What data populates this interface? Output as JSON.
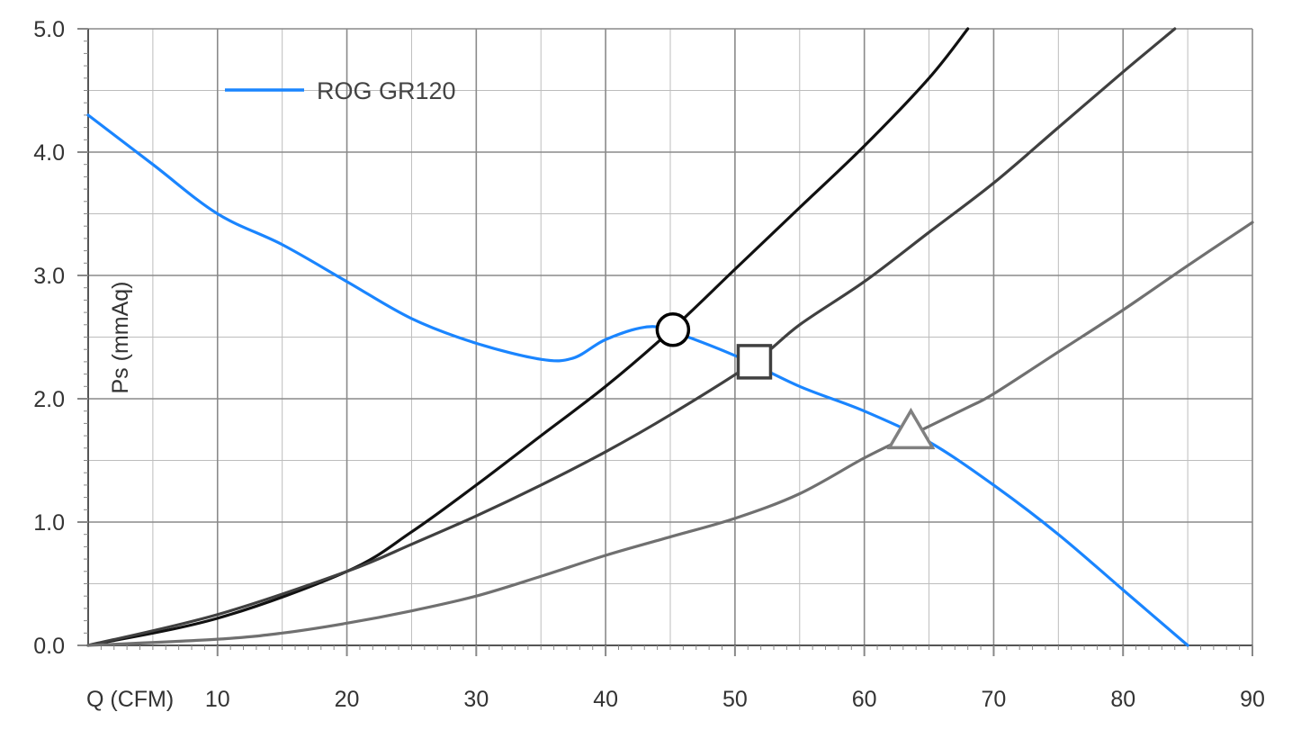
{
  "chart_data": {
    "type": "line",
    "xlabel": "Q (CFM)",
    "ylabel": "Ps (mmAq)",
    "xlim": [
      0,
      90
    ],
    "ylim": [
      0,
      5
    ],
    "x_ticks": [
      10,
      20,
      30,
      40,
      50,
      60,
      70,
      80,
      90
    ],
    "x_tick_labels": [
      "10",
      "20",
      "30",
      "40",
      "50",
      "60",
      "70",
      "80",
      "90"
    ],
    "y_ticks": [
      0,
      1,
      2,
      3,
      4,
      5
    ],
    "y_tick_labels": [
      "0.0",
      "1.0",
      "2.0",
      "3.0",
      "4.0",
      "5.0"
    ],
    "grid": true,
    "legend_position": "top-left",
    "legend": [
      "ROG GR120"
    ],
    "series": [
      {
        "name": "ROG GR120",
        "color": "#1a85ff",
        "x": [
          0,
          5,
          10,
          15,
          20,
          25,
          30,
          35,
          37.5,
          40,
          43,
          45,
          50,
          55,
          60,
          65,
          70,
          75,
          80,
          85
        ],
        "y": [
          4.3,
          3.9,
          3.5,
          3.25,
          2.95,
          2.65,
          2.45,
          2.32,
          2.33,
          2.48,
          2.58,
          2.55,
          2.35,
          2.1,
          1.9,
          1.65,
          1.3,
          0.9,
          0.45,
          0.0
        ]
      },
      {
        "color": "#111111",
        "x": [
          0,
          10,
          20,
          25,
          30,
          35,
          40,
          45,
          50,
          55,
          60,
          65,
          68
        ],
        "y": [
          0,
          0.22,
          0.6,
          0.92,
          1.3,
          1.7,
          2.1,
          2.55,
          3.05,
          3.55,
          4.05,
          4.6,
          5.0
        ]
      },
      {
        "color": "#404040",
        "x": [
          0,
          10,
          20,
          25,
          30,
          35,
          40,
          45,
          51.5,
          55,
          60,
          65,
          70,
          75,
          80,
          84
        ],
        "y": [
          0,
          0.25,
          0.6,
          0.82,
          1.05,
          1.3,
          1.57,
          1.87,
          2.3,
          2.6,
          2.95,
          3.35,
          3.75,
          4.2,
          4.65,
          5.0
        ]
      },
      {
        "color": "#707070",
        "x": [
          0,
          10,
          15,
          20,
          25,
          30,
          35,
          40,
          45,
          50,
          55,
          60,
          63.5,
          68,
          70,
          75,
          80,
          85,
          90
        ],
        "y": [
          0,
          0.05,
          0.1,
          0.18,
          0.28,
          0.4,
          0.56,
          0.73,
          0.88,
          1.03,
          1.23,
          1.52,
          1.7,
          1.93,
          2.04,
          2.38,
          2.72,
          3.08,
          3.43
        ]
      }
    ],
    "markers": [
      {
        "shape": "circle",
        "x": 45.2,
        "y": 2.56
      },
      {
        "shape": "square",
        "x": 51.5,
        "y": 2.3
      },
      {
        "shape": "triangle",
        "x": 63.6,
        "y": 1.72
      }
    ]
  }
}
